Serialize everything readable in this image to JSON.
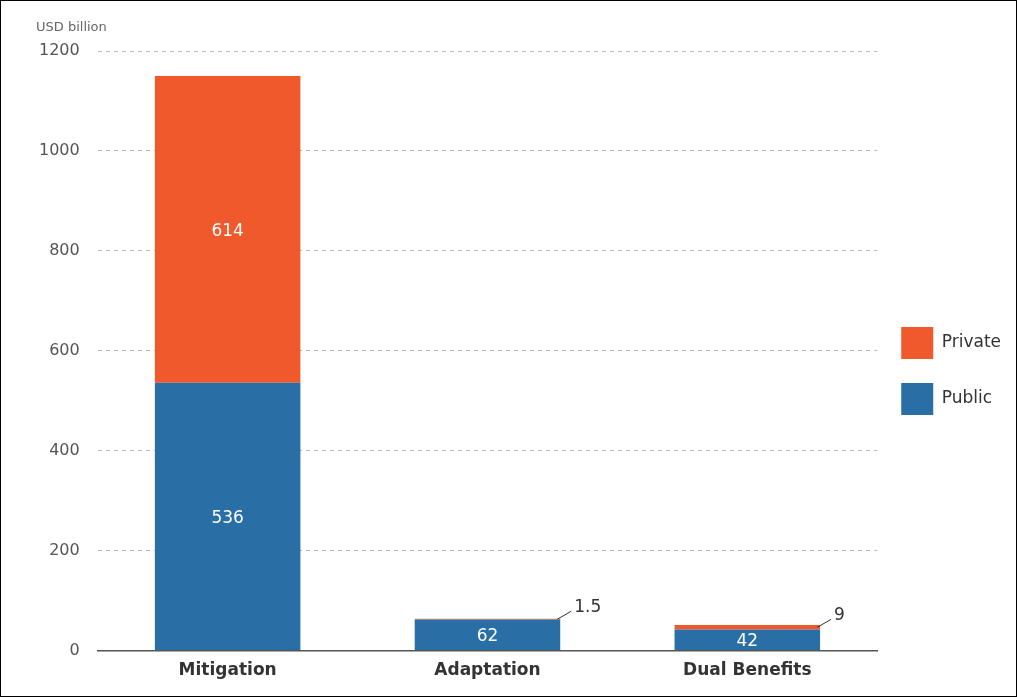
{
  "chart_data": {
    "type": "bar",
    "ylabel": "USD billion",
    "categories": [
      "Mitigation",
      "Adaptation",
      "Dual Benefits"
    ],
    "stacked": true,
    "series": [
      {
        "name": "Public",
        "color": "#2a6ea6",
        "values": [
          536,
          62,
          42
        ]
      },
      {
        "name": "Private",
        "color": "#f0592b",
        "values": [
          614,
          1.5,
          9
        ]
      }
    ],
    "ylim": [
      0,
      1200
    ],
    "yticks": [
      0,
      200,
      400,
      600,
      800,
      1000,
      1200
    ],
    "grid": "y",
    "legend": "right",
    "data_labels": true
  }
}
